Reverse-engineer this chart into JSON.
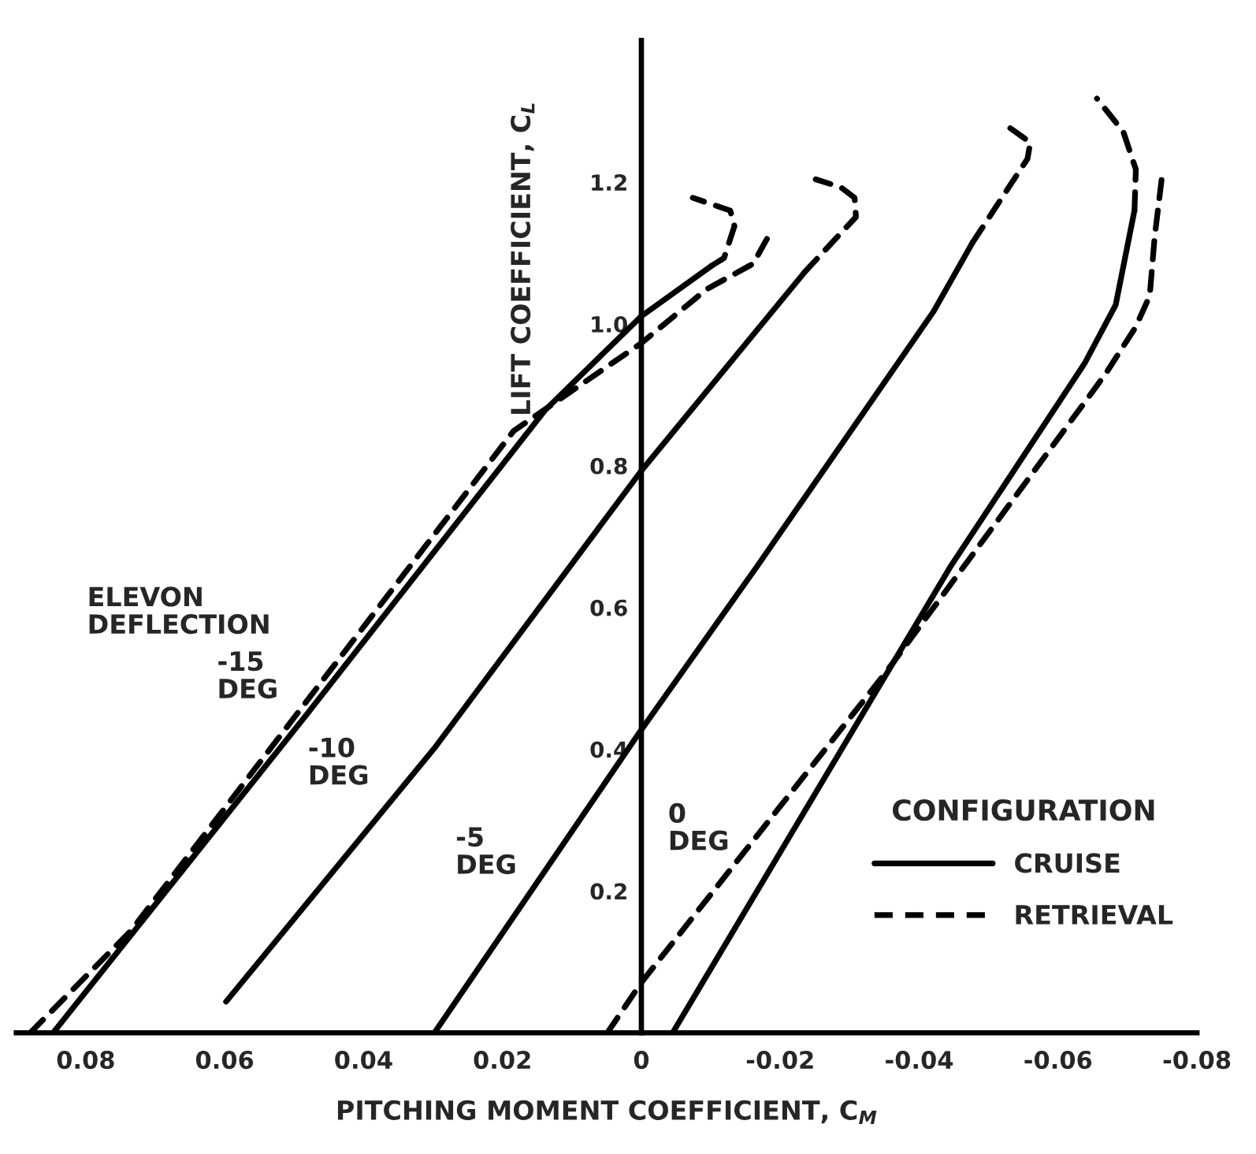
{
  "chart_data": {
    "type": "line",
    "xlabel": "PITCHING MOMENT COEFFICIENT, C$_{M}$",
    "ylabel": "LIFT COEFFICIENT, C$_{L}$",
    "legend_title": "CONFIGURATION",
    "legend": "lower right",
    "grid": false,
    "marker": "none",
    "xlim": [
      0.09,
      -0.08
    ],
    "xticks": [
      0.08,
      0.06,
      0.04,
      0.02,
      0,
      -0.02,
      -0.04,
      -0.06,
      -0.08
    ],
    "ylim": [
      0,
      1.4
    ],
    "yticks": [
      0.2,
      0.4,
      0.6,
      0.8,
      {
        "value": 1.0,
        "label": "1.0"
      },
      1.2
    ],
    "series": [
      {
        "name": "CRUISE",
        "color": "#000000",
        "line_style": "solid",
        "x": [
          0.0847,
          0.0482,
          0.0139,
          0.0,
          -0.0101
        ],
        "values": [
          0,
          0.449,
          0.878,
          1.011,
          1.082
        ]
      },
      {
        "name": "RETRIEVAL",
        "color": "#000000",
        "line_style": "dashed",
        "x": [
          0.088,
          0.0735,
          0.0184,
          0.0,
          -0.0094,
          -0.0161,
          -0.0186
        ],
        "values": [
          0,
          0.144,
          0.849,
          0.973,
          1.049,
          1.085,
          1.129
        ]
      },
      {
        "color": "#000000",
        "line_style": "dashed",
        "x": [
          -0.0101,
          -0.0119,
          -0.0134,
          -0.0128,
          -0.0074
        ],
        "values": [
          1.082,
          1.093,
          1.138,
          1.16,
          1.178
        ]
      },
      {
        "color": "#000000",
        "line_style": "solid",
        "x": [
          0.0598,
          0.0296,
          0.0,
          -0.0235
        ],
        "values": [
          0.044,
          0.404,
          0.793,
          1.073
        ]
      },
      {
        "color": "#000000",
        "line_style": "dashed",
        "x": [
          -0.0235,
          -0.0309,
          -0.0307,
          -0.0287,
          -0.0251
        ],
        "values": [
          1.073,
          1.151,
          1.178,
          1.193,
          1.204
        ]
      },
      {
        "color": "#000000",
        "line_style": "solid",
        "x": [
          0.0298,
          0.0004,
          -0.0168,
          -0.0421,
          -0.0477
        ],
        "values": [
          0,
          0.422,
          0.66,
          1.018,
          1.115
        ]
      },
      {
        "color": "#000000",
        "line_style": "dashed",
        "x": [
          -0.0477,
          -0.0556,
          -0.056,
          -0.052
        ],
        "values": [
          1.115,
          1.233,
          1.256,
          1.284
        ]
      },
      {
        "color": "#000000",
        "line_style": "solid",
        "x": [
          -0.0045,
          -0.0444,
          -0.0638,
          -0.0683,
          -0.071
        ],
        "values": [
          0,
          0.656,
          0.944,
          1.027,
          1.16
        ]
      },
      {
        "color": "#000000",
        "line_style": "dashed",
        "x": [
          -0.071,
          -0.0712,
          -0.0694,
          -0.0656
        ],
        "values": [
          1.16,
          1.218,
          1.271,
          1.318
        ]
      },
      {
        "color": "#000000",
        "line_style": "dashed",
        "x": [
          0.0049,
          0.0,
          -0.0354,
          -0.0668,
          -0.0712,
          -0.0732,
          -0.0739,
          -0.075
        ],
        "values": [
          0,
          0.071,
          0.511,
          0.929,
          0.996,
          1.04,
          1.122,
          1.211
        ]
      }
    ],
    "annotations": [
      "ELEVON\nDEFLECTION",
      "-15\nDEG",
      "-10\nDEG",
      "-5\nDEG",
      "0\nDEG"
    ]
  }
}
